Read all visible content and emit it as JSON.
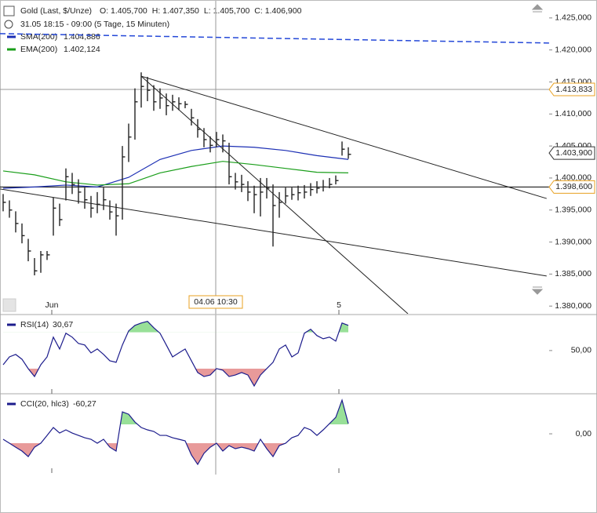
{
  "chart_data": [
    {
      "type": "ohlc",
      "title": "Gold (Last, $/Unze)",
      "ohlc_labels": [
        "O: 1.405,700",
        "H: 1.407,350",
        "L: 1.405,700",
        "C: 1.406,900"
      ],
      "subtitle": "31.05 18:15 - 09:00 (5 Tage, 15 Minuten)",
      "color": "#222222",
      "xlim": [
        -0.5,
        87.5
      ],
      "xticks": [
        {
          "value": 7.75,
          "label": "Jun"
        },
        {
          "value": 53.5,
          "label": "5"
        }
      ],
      "crosshair": {
        "value": 33.875,
        "label": "04.06 10:30"
      },
      "ylim": [
        1378800,
        1427800
      ],
      "yticks": [
        {
          "value": 1380000,
          "label": "1.380,000"
        },
        {
          "value": 1385000,
          "label": "1.385,000"
        },
        {
          "value": 1390000,
          "label": "1.390,000"
        },
        {
          "value": 1395000,
          "label": "1.395,000"
        },
        {
          "value": 1400000,
          "label": "1.400,000"
        },
        {
          "value": 1405000,
          "label": "1.405,000"
        },
        {
          "value": 1410000,
          "label": "1.410,000"
        },
        {
          "value": 1415000,
          "label": "1.415,000"
        },
        {
          "value": 1420000,
          "label": "1.420,000"
        },
        {
          "value": 1425000,
          "label": "1.425,000"
        }
      ],
      "high": [
        1397500,
        1396500,
        1394800,
        1392900,
        1390500,
        1387500,
        1388600,
        1388600,
        1397000,
        1396000,
        1401500,
        1400800,
        1399800,
        1398500,
        1397200,
        1397800,
        1398500,
        1396500,
        1396000,
        1405000,
        1408500,
        1414000,
        1416500,
        1415800,
        1414500,
        1414000,
        1413200,
        1413000,
        1412600,
        1412000,
        1410800,
        1409200,
        1407800,
        1406500,
        1407200,
        1406800,
        1405500,
        1400800,
        1400500,
        1399500,
        1398800,
        1400000,
        1400000,
        1399000,
        1397800,
        1398500,
        1398500,
        1398800,
        1398900,
        1399200,
        1399500,
        1399700,
        1400000,
        1400400,
        1405700,
        1404800
      ],
      "low": [
        1394800,
        1393800,
        1391500,
        1389800,
        1387000,
        1384800,
        1385200,
        1387200,
        1391000,
        1392500,
        1396500,
        1397500,
        1396000,
        1395200,
        1393800,
        1394500,
        1395000,
        1393500,
        1391000,
        1393500,
        1402500,
        1406000,
        1411000,
        1412000,
        1410500,
        1410800,
        1409800,
        1410500,
        1410600,
        1410900,
        1408200,
        1406300,
        1404800,
        1404000,
        1404800,
        1404000,
        1399000,
        1398200,
        1397800,
        1396400,
        1394500,
        1394000,
        1396800,
        1389300,
        1393800,
        1396000,
        1396600,
        1396500,
        1396800,
        1397200,
        1397600,
        1397900,
        1398400,
        1399000,
        1403500,
        1403000
      ],
      "close": [
        1396200,
        1395000,
        1392900,
        1391000,
        1388600,
        1385500,
        1388000,
        1388000,
        1395300,
        1393500,
        1400200,
        1399000,
        1397800,
        1396600,
        1395300,
        1395900,
        1396600,
        1394700,
        1394100,
        1403300,
        1406400,
        1411900,
        1414300,
        1413700,
        1411900,
        1412500,
        1411300,
        1411900,
        1411600,
        1411500,
        1409400,
        1407600,
        1406000,
        1405100,
        1406000,
        1405800,
        1400200,
        1399400,
        1399000,
        1397800,
        1397400,
        1397800,
        1398400,
        1395700,
        1396200,
        1397200,
        1397400,
        1397700,
        1397800,
        1398200,
        1398400,
        1398600,
        1399000,
        1399600,
        1404500,
        1403700
      ],
      "series": [
        {
          "name": "SMA(200)",
          "legend_value": "1.404,886",
          "color": "#1c2fb4",
          "x": [
            0,
            5,
            10,
            15,
            20,
            25,
            30,
            35,
            40,
            45,
            50,
            55
          ],
          "values": [
            1398400,
            1398600,
            1398900,
            1398600,
            1400100,
            1402900,
            1404300,
            1405000,
            1404800,
            1404300,
            1403500,
            1402900
          ]
        },
        {
          "name": "EMA(200)",
          "legend_value": "1.402,124",
          "color": "#1a9e1a",
          "x": [
            0,
            5,
            10,
            15,
            20,
            25,
            30,
            35,
            40,
            45,
            50,
            55
          ],
          "values": [
            1401100,
            1400500,
            1399400,
            1398900,
            1399100,
            1400800,
            1401800,
            1402600,
            1402100,
            1401500,
            1400900,
            1400800
          ]
        }
      ],
      "price_tags": [
        {
          "value": 1413833,
          "label": "1.413,833",
          "border": "#e8a020",
          "line_color": "#9a9a9a"
        },
        {
          "value": 1403900,
          "label": "1.403,900",
          "border": "#333333"
        },
        {
          "value": 1398600,
          "label": "1.398,600",
          "border": "#e8a020",
          "line_color": "#000000"
        }
      ],
      "drawings": [
        {
          "x": [
            22,
            86.6
          ],
          "y": [
            1415900,
            1396800
          ],
          "color": "#222222"
        },
        {
          "x": [
            -0.5,
            86.6
          ],
          "y": [
            1398300,
            1384700
          ],
          "color": "#222222"
        },
        {
          "x": [
            22,
            64.5
          ],
          "y": [
            1415900,
            1378800
          ],
          "color": "#222222"
        },
        {
          "x": [
            -0.5,
            87
          ],
          "y": [
            1422550,
            1421080
          ],
          "color": "#2448d8",
          "dashed": true
        }
      ]
    },
    {
      "type": "indicator",
      "title": "RSI(14)",
      "legend_value": "30,67",
      "color": "#1c1c8c",
      "ylim": [
        4,
        88
      ],
      "yticks": [
        {
          "value": 50,
          "label": "50,00"
        }
      ],
      "fill_levels": [
        30,
        70
      ],
      "values": [
        34.3,
        43,
        45.7,
        40.4,
        30,
        21.3,
        34.3,
        43,
        64.8,
        51.7,
        69.1,
        64.8,
        57.8,
        56.1,
        47.4,
        51.7,
        45.7,
        38.7,
        37,
        56.1,
        71.7,
        77.8,
        80.4,
        82.2,
        75.2,
        69.1,
        56.1,
        43,
        47.4,
        51.7,
        38.7,
        25.7,
        21.3,
        23,
        30,
        28.3,
        21.3,
        23,
        25.7,
        23,
        10.9,
        23,
        30,
        37,
        51.7,
        56.1,
        43,
        47.4,
        69.1,
        73.5,
        66.5,
        63,
        64.8,
        60.4,
        80.4,
        77.8
      ]
    },
    {
      "type": "indicator",
      "title": "CCI(20, hlc3)",
      "legend_value": "-60,27",
      "color": "#1c1c8c",
      "ylim": [
        -433,
        417
      ],
      "yticks": [
        {
          "value": 0,
          "label": "0,00"
        }
      ],
      "fill_levels": [
        -100,
        100
      ],
      "values": [
        -58,
        -100,
        -142,
        -183,
        -242,
        -142,
        -100,
        -17,
        67,
        8,
        42,
        8,
        -17,
        -42,
        -58,
        -100,
        -58,
        -142,
        -183,
        233,
        208,
        125,
        67,
        42,
        25,
        -17,
        -17,
        -42,
        -58,
        -75,
        -225,
        -325,
        -208,
        -142,
        -100,
        -183,
        -125,
        -158,
        -142,
        -158,
        -183,
        -58,
        -158,
        -242,
        -125,
        -100,
        -42,
        -17,
        67,
        42,
        -17,
        42,
        108,
        175,
        358,
        108
      ]
    }
  ]
}
